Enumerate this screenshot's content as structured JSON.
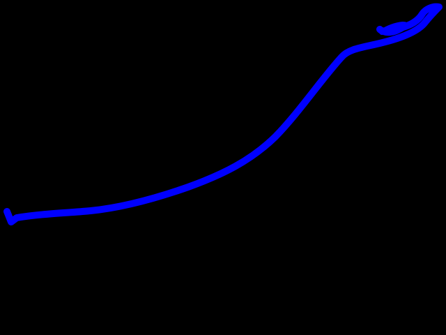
{
  "scene": {
    "background_color": "#000000",
    "stroke_color": "#0000FF",
    "stroke_kind": "freehand-curve"
  }
}
